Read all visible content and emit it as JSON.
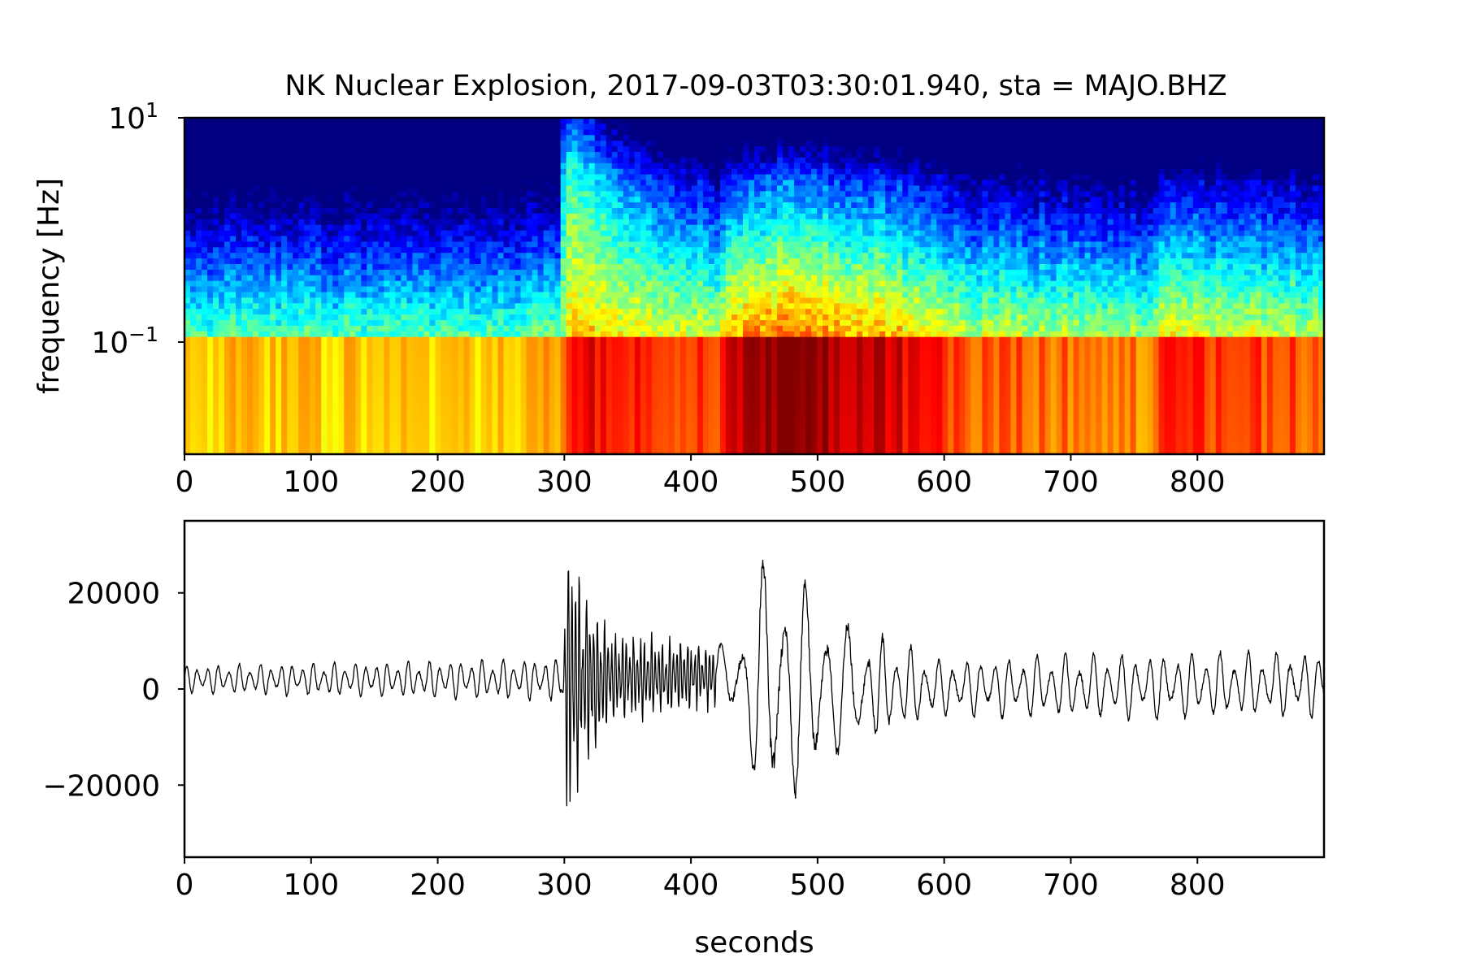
{
  "chart_data": [
    {
      "type": "heatmap",
      "title": "NK Nuclear Explosion, 2017-09-03T03:30:01.940, sta = MAJO.BHZ",
      "xlabel": "",
      "ylabel": "frequency [Hz]",
      "xlim": [
        0,
        900
      ],
      "ylim": [
        0.025,
        10
      ],
      "y_scale": "log",
      "colormap": "jet",
      "x_ticks": [
        0,
        100,
        200,
        300,
        400,
        500,
        600,
        700,
        800
      ],
      "x_tick_labels": [
        "0",
        "100",
        "200",
        "300",
        "400",
        "500",
        "600",
        "700",
        "800"
      ],
      "y_tick_labels": [
        {
          "value": 10,
          "base": "10",
          "exponent": "1"
        },
        {
          "value": 0.1,
          "base": "10",
          "exponent": "−1"
        }
      ],
      "energy_profile": [
        {
          "t": 0,
          "level": 0.68
        },
        {
          "t": 260,
          "level": 0.68
        },
        {
          "t": 300,
          "level": 0.72
        },
        {
          "t": 302,
          "level": 0.9
        },
        {
          "t": 420,
          "level": 0.8
        },
        {
          "t": 430,
          "level": 0.95
        },
        {
          "t": 480,
          "level": 1.0
        },
        {
          "t": 560,
          "level": 0.92
        },
        {
          "t": 615,
          "level": 0.8
        },
        {
          "t": 760,
          "level": 0.76
        },
        {
          "t": 770,
          "level": 0.84
        },
        {
          "t": 900,
          "level": 0.8
        }
      ],
      "grid": false
    },
    {
      "type": "line",
      "title": "",
      "xlabel": "seconds",
      "ylabel": "",
      "xlim": [
        0,
        900
      ],
      "ylim": [
        -35000,
        35000
      ],
      "x_ticks": [
        0,
        100,
        200,
        300,
        400,
        500,
        600,
        700,
        800
      ],
      "x_tick_labels": [
        "0",
        "100",
        "200",
        "300",
        "400",
        "500",
        "600",
        "700",
        "800"
      ],
      "y_ticks": [
        20000,
        0,
        -20000
      ],
      "y_tick_labels": [
        "20000",
        "0",
        "−20000"
      ],
      "line_color": "#000000",
      "series": [
        {
          "name": "",
          "envelope_points": [
            {
              "t": 0,
              "amp": 3000
            },
            {
              "t": 298,
              "amp": 4500
            },
            {
              "t": 302,
              "amp": 31000
            },
            {
              "t": 315,
              "amp": 20000
            },
            {
              "t": 340,
              "amp": 9000
            },
            {
              "t": 425,
              "amp": 6500
            },
            {
              "t": 445,
              "amp": 14000
            },
            {
              "t": 455,
              "amp": 28000
            },
            {
              "t": 480,
              "amp": 26000
            },
            {
              "t": 520,
              "amp": 14000
            },
            {
              "t": 600,
              "amp": 6000
            },
            {
              "t": 700,
              "amp": 7000
            },
            {
              "t": 900,
              "amp": 7000
            }
          ],
          "offset_points": [
            {
              "t": 0,
              "y": 2000
            },
            {
              "t": 300,
              "y": 2000
            },
            {
              "t": 430,
              "y": 3000
            },
            {
              "t": 450,
              "y": 0
            },
            {
              "t": 500,
              "y": 0
            },
            {
              "t": 900,
              "y": 1000
            }
          ]
        }
      ],
      "grid": false
    }
  ]
}
